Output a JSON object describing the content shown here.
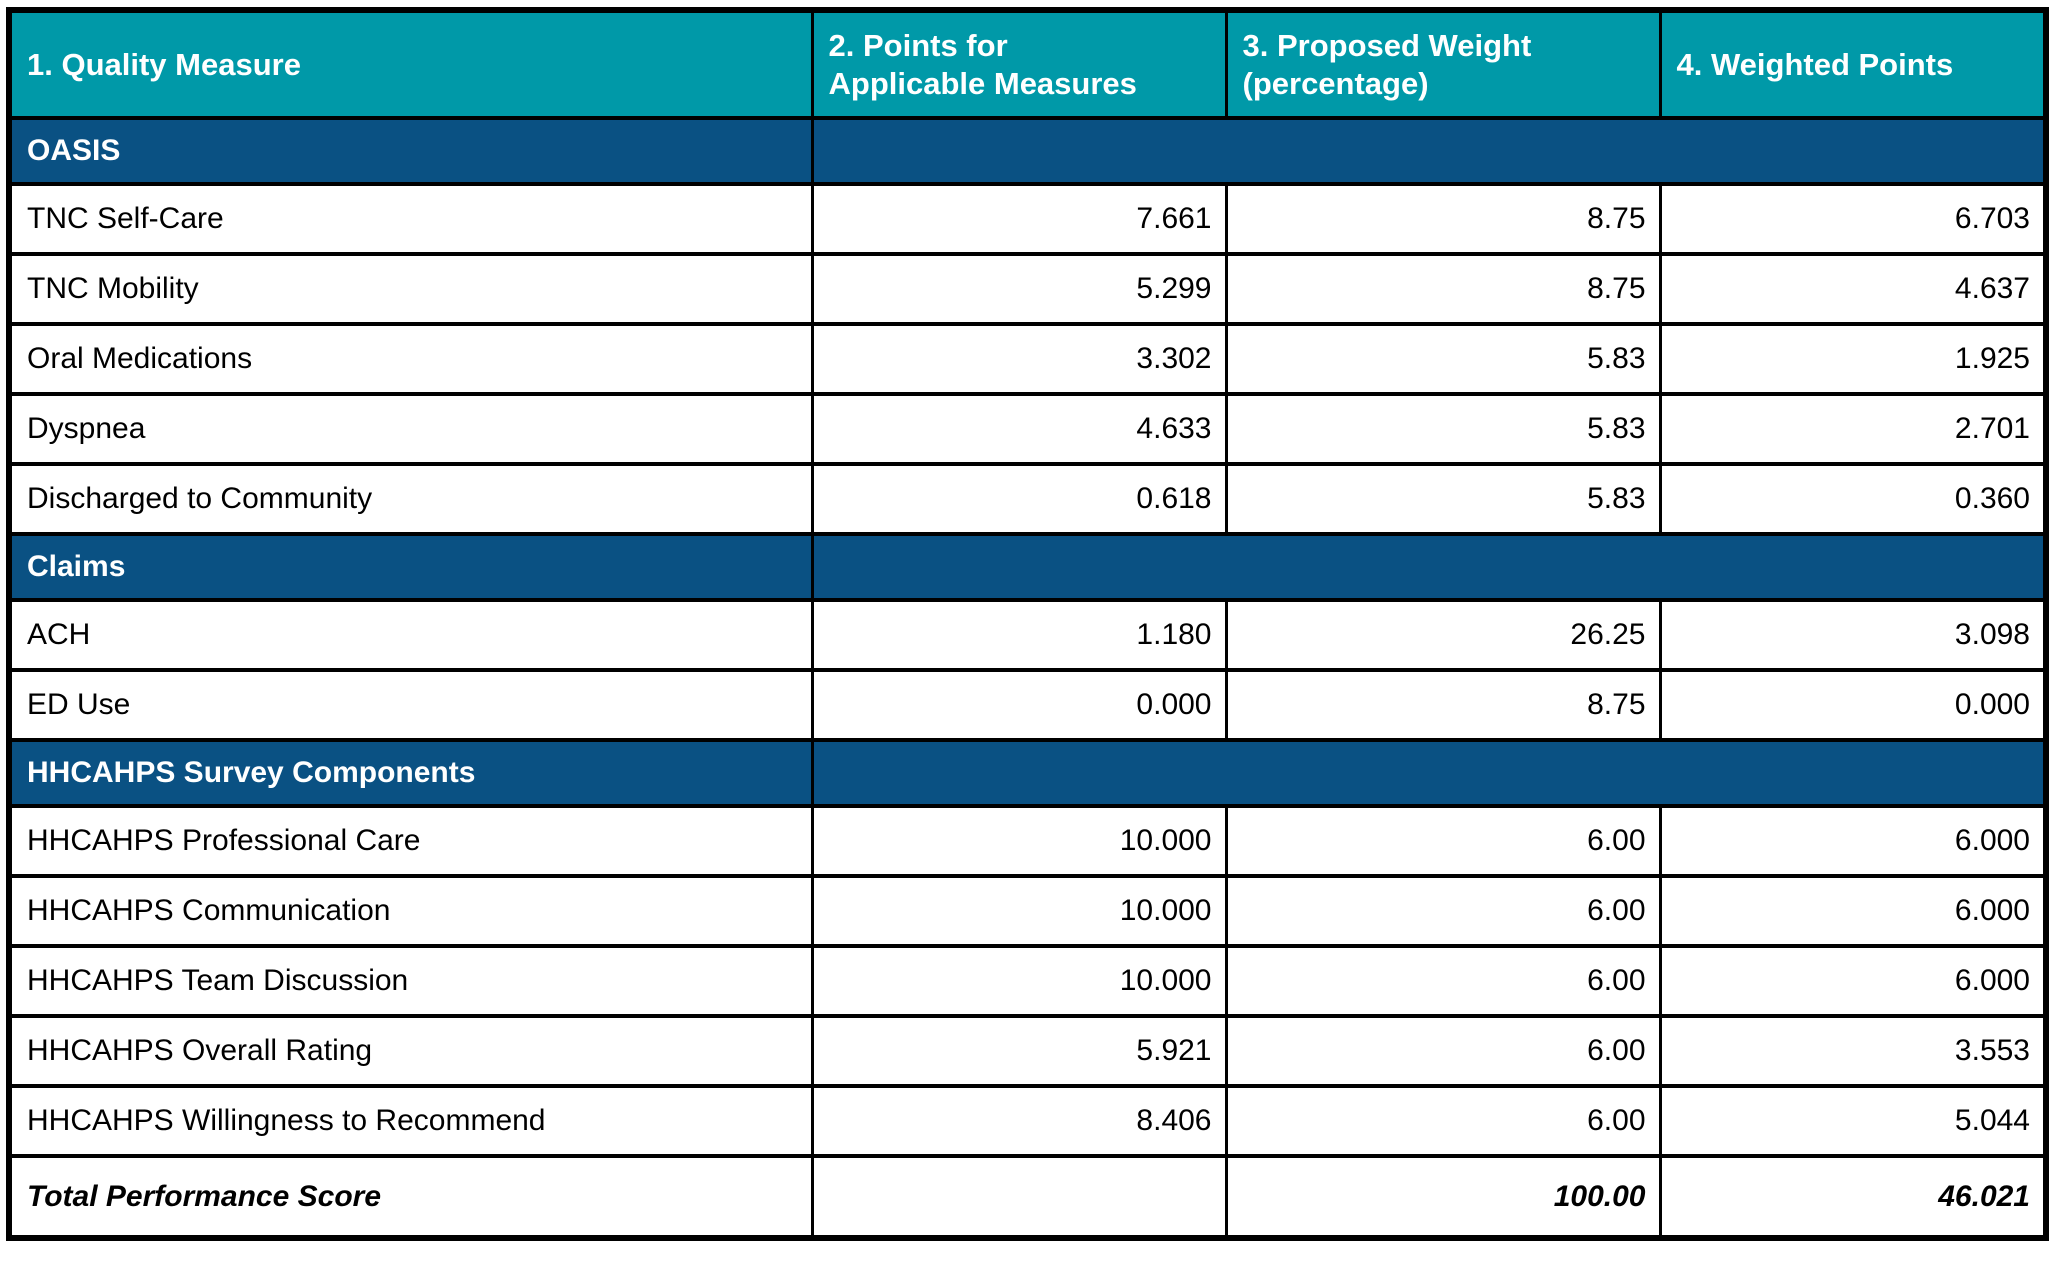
{
  "colors": {
    "header_teal": "#0099A8",
    "section_blue": "#0A5183",
    "border_black": "#000000",
    "header_text_white": "#FFFFFF",
    "body_text_black": "#000000"
  },
  "columns": [
    {
      "line1": "1. Quality Measure",
      "line2": ""
    },
    {
      "line1": "2. Points for",
      "line2": "Applicable Measures"
    },
    {
      "line1": "3. Proposed Weight",
      "line2": "(percentage)"
    },
    {
      "line1": "4. Weighted Points",
      "line2": ""
    }
  ],
  "sections": [
    {
      "label": "OASIS",
      "rows": [
        {
          "measure": "TNC Self-Care",
          "points": "7.661",
          "weight": "8.75",
          "weighted": "6.703"
        },
        {
          "measure": "TNC Mobility",
          "points": "5.299",
          "weight": "8.75",
          "weighted": "4.637"
        },
        {
          "measure": "Oral Medications",
          "points": "3.302",
          "weight": "5.83",
          "weighted": "1.925"
        },
        {
          "measure": "Dyspnea",
          "points": "4.633",
          "weight": "5.83",
          "weighted": "2.701"
        },
        {
          "measure": "Discharged to Community",
          "points": "0.618",
          "weight": "5.83",
          "weighted": "0.360"
        }
      ]
    },
    {
      "label": "Claims",
      "rows": [
        {
          "measure": "ACH",
          "points": "1.180",
          "weight": "26.25",
          "weighted": "3.098"
        },
        {
          "measure": "ED Use",
          "points": "0.000",
          "weight": "8.75",
          "weighted": "0.000"
        }
      ]
    },
    {
      "label": "HHCAHPS Survey Components",
      "rows": [
        {
          "measure": "HHCAHPS Professional Care",
          "points": "10.000",
          "weight": "6.00",
          "weighted": "6.000"
        },
        {
          "measure": "HHCAHPS Communication",
          "points": "10.000",
          "weight": "6.00",
          "weighted": "6.000"
        },
        {
          "measure": "HHCAHPS Team Discussion",
          "points": "10.000",
          "weight": "6.00",
          "weighted": "6.000"
        },
        {
          "measure": "HHCAHPS Overall Rating",
          "points": "5.921",
          "weight": "6.00",
          "weighted": "3.553"
        },
        {
          "measure": "HHCAHPS Willingness to Recommend",
          "points": "8.406",
          "weight": "6.00",
          "weighted": "5.044"
        }
      ]
    }
  ],
  "total": {
    "label": "Total Performance Score",
    "points": "",
    "weight": "100.00",
    "weighted": "46.021"
  },
  "chart_data": {
    "type": "table",
    "title": "",
    "columns": [
      "1. Quality Measure",
      "2. Points for Applicable Measures",
      "3. Proposed Weight (percentage)",
      "4. Weighted Points"
    ],
    "rows": [
      [
        "OASIS",
        null,
        null,
        null
      ],
      [
        "TNC Self-Care",
        7.661,
        8.75,
        6.703
      ],
      [
        "TNC Mobility",
        5.299,
        8.75,
        4.637
      ],
      [
        "Oral Medications",
        3.302,
        5.83,
        1.925
      ],
      [
        "Dyspnea",
        4.633,
        5.83,
        2.701
      ],
      [
        "Discharged to Community",
        0.618,
        5.83,
        0.36
      ],
      [
        "Claims",
        null,
        null,
        null
      ],
      [
        "ACH",
        1.18,
        26.25,
        3.098
      ],
      [
        "ED Use",
        0.0,
        8.75,
        0.0
      ],
      [
        "HHCAHPS Survey Components",
        null,
        null,
        null
      ],
      [
        "HHCAHPS Professional Care",
        10.0,
        6.0,
        6.0
      ],
      [
        "HHCAHPS Communication",
        10.0,
        6.0,
        6.0
      ],
      [
        "HHCAHPS Team Discussion",
        10.0,
        6.0,
        6.0
      ],
      [
        "HHCAHPS Overall Rating",
        5.921,
        6.0,
        3.553
      ],
      [
        "HHCAHPS Willingness to Recommend",
        8.406,
        6.0,
        5.044
      ],
      [
        "Total Performance Score",
        null,
        100.0,
        46.021
      ]
    ]
  }
}
